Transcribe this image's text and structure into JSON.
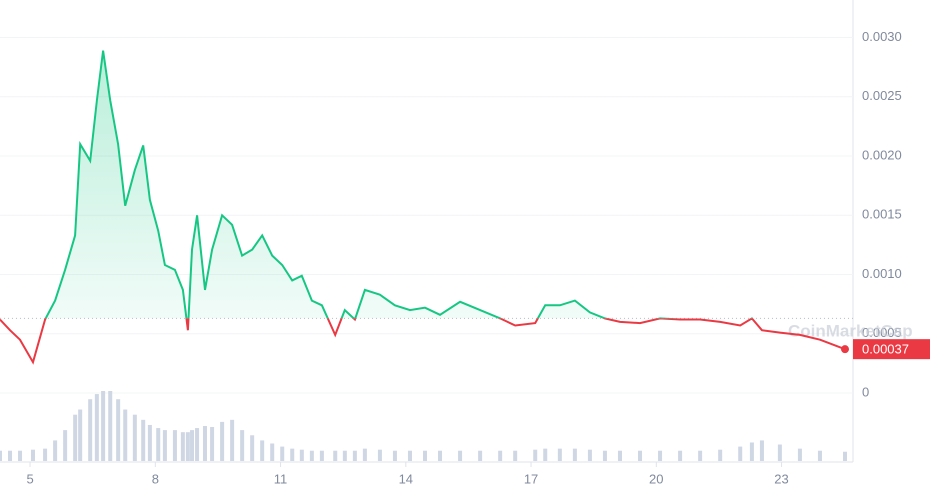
{
  "chart_data": {
    "type": "line",
    "watermark": "CoinMarketCap",
    "x": [
      4.28,
      4.52,
      4.76,
      5.07,
      5.36,
      5.6,
      5.84,
      6.08,
      6.2,
      6.44,
      6.6,
      6.75,
      6.92,
      7.11,
      7.28,
      7.51,
      7.71,
      7.87,
      8.07,
      8.23,
      8.47,
      8.66,
      8.78,
      8.88,
      9.0,
      9.19,
      9.36,
      9.6,
      9.84,
      10.08,
      10.32,
      10.56,
      10.8,
      11.04,
      11.28,
      11.51,
      11.75,
      11.99,
      12.31,
      12.54,
      12.78,
      13.02,
      13.38,
      13.74,
      14.1,
      14.46,
      14.82,
      15.3,
      15.78,
      16.26,
      16.62,
      17.1,
      17.34,
      17.69,
      18.05,
      18.41,
      18.77,
      19.13,
      19.61,
      20.09,
      20.57,
      21.05,
      21.53,
      22.01,
      22.29,
      22.53,
      22.96,
      23.44,
      23.92,
      24.52
    ],
    "values": [
      0.00062,
      0.00053,
      0.00045,
      0.00026,
      0.00062,
      0.00078,
      0.00104,
      0.00133,
      0.0021,
      0.00196,
      0.00247,
      0.00289,
      0.00247,
      0.0021,
      0.00158,
      0.00188,
      0.00209,
      0.00163,
      0.00137,
      0.00108,
      0.00104,
      0.00087,
      0.00053,
      0.00121,
      0.0015,
      0.00087,
      0.00121,
      0.0015,
      0.00142,
      0.00116,
      0.00121,
      0.00133,
      0.00116,
      0.00108,
      0.00095,
      0.00099,
      0.00078,
      0.00074,
      0.00049,
      0.0007,
      0.00062,
      0.00087,
      0.00083,
      0.00074,
      0.0007,
      0.00072,
      0.00066,
      0.00077,
      0.0007,
      0.00063,
      0.00057,
      0.00059,
      0.00074,
      0.00074,
      0.00078,
      0.00068,
      0.00063,
      0.0006,
      0.00059,
      0.00063,
      0.00062,
      0.00062,
      0.0006,
      0.00057,
      0.00063,
      0.00053,
      0.00051,
      0.00049,
      0.00045,
      0.00037
    ],
    "volume": [
      10,
      10,
      10,
      11,
      12,
      20,
      30,
      45,
      50,
      60,
      65,
      68,
      68,
      60,
      50,
      45,
      40,
      35,
      32,
      30,
      30,
      28,
      28,
      30,
      32,
      34,
      33,
      38,
      40,
      30,
      25,
      20,
      17,
      14,
      12,
      11,
      10,
      10,
      10,
      10,
      10,
      12,
      11,
      10,
      10,
      10,
      10,
      10,
      10,
      10,
      10,
      11,
      12,
      12,
      12,
      11,
      10,
      10,
      10,
      10,
      10,
      10,
      11,
      14,
      18,
      20,
      16,
      12,
      10,
      9
    ],
    "baseline": 0.00063,
    "up_color": "#16c784",
    "down_color": "#ea3943",
    "volume_color": "#cfd6e4",
    "xlim": [
      4.28,
      24.52
    ],
    "xticks": [
      5,
      8,
      11,
      14,
      17,
      20,
      23
    ],
    "ylim": [
      0,
      0.0033
    ],
    "yticks": [
      0,
      {
        "value": 0.0005,
        "label": "0.0005"
      },
      {
        "value": 0.001,
        "label": "0.0010"
      },
      {
        "value": 0.0015,
        "label": "0.0015"
      },
      {
        "value": 0.002,
        "label": "0.0020"
      },
      {
        "value": 0.0025,
        "label": "0.0025"
      },
      {
        "value": 0.003,
        "label": "0.0030"
      }
    ],
    "grid": true
  }
}
